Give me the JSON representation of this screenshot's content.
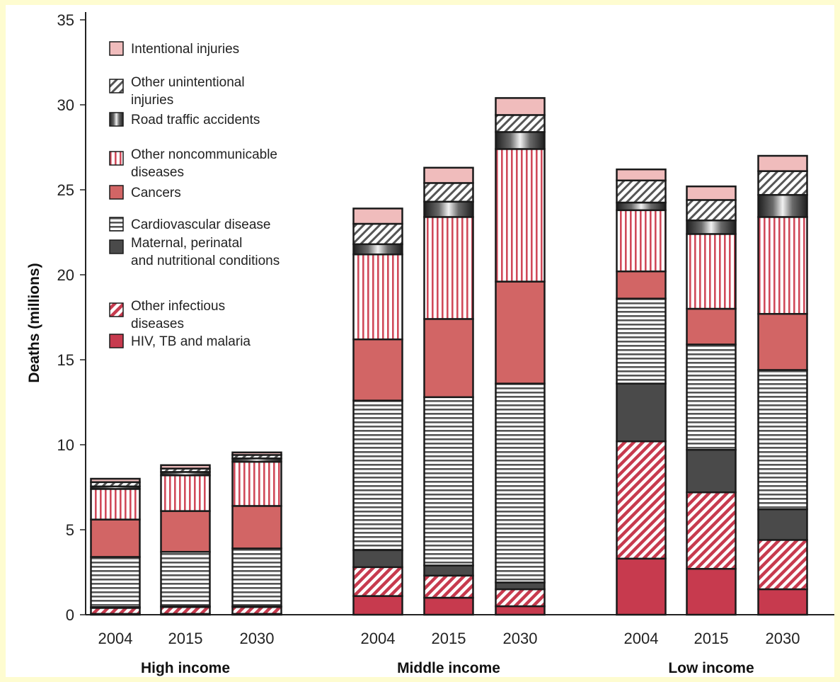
{
  "chart_data": {
    "type": "bar",
    "stacked": true,
    "title": "",
    "xlabel": "",
    "ylabel": "Deaths (millions)",
    "ylim": [
      0,
      35
    ],
    "yticks": [
      0,
      5,
      10,
      15,
      20,
      25,
      30,
      35
    ],
    "grid": false,
    "legend_position": "top-left",
    "groups": [
      "High income",
      "Middle income",
      "Low income"
    ],
    "years": [
      "2004",
      "2015",
      "2030"
    ],
    "categories": [
      "High income 2004",
      "High income 2015",
      "High income 2030",
      "Middle income 2004",
      "Middle income 2015",
      "Middle income 2030",
      "Low income 2004",
      "Low income 2015",
      "Low income 2030"
    ],
    "series": [
      {
        "name": "HIV, TB and malaria",
        "color": "#c73a4e",
        "pattern": "solid",
        "values": [
          0.05,
          0.05,
          0.05,
          1.1,
          1.0,
          0.5,
          3.3,
          2.7,
          1.5
        ]
      },
      {
        "name": "Other infectious diseases",
        "color": "#c73a4e",
        "pattern": "diagonal",
        "values": [
          0.35,
          0.4,
          0.4,
          1.7,
          1.3,
          1.0,
          6.9,
          4.5,
          2.9
        ]
      },
      {
        "name": "Maternal, perinatal and nutritional conditions",
        "color": "#4a4a4a",
        "pattern": "solid",
        "values": [
          0.05,
          0.05,
          0.05,
          1.0,
          0.6,
          0.4,
          3.4,
          2.5,
          1.8
        ]
      },
      {
        "name": "Cardiovascular disease",
        "color": "#555555",
        "pattern": "horizontal",
        "values": [
          2.95,
          3.2,
          3.4,
          8.8,
          9.9,
          11.7,
          5.0,
          6.2,
          8.2
        ]
      },
      {
        "name": "Cancers",
        "color": "#d26565",
        "pattern": "solid",
        "values": [
          2.2,
          2.4,
          2.5,
          3.6,
          4.6,
          6.0,
          1.6,
          2.1,
          3.3
        ]
      },
      {
        "name": "Other noncommunicable diseases",
        "color": "#d04a5a",
        "pattern": "vertical",
        "values": [
          1.8,
          2.1,
          2.6,
          5.0,
          6.0,
          7.8,
          3.6,
          4.4,
          5.7
        ]
      },
      {
        "name": "Road traffic accidents",
        "color": "#2a2a2a",
        "pattern": "gradient",
        "values": [
          0.15,
          0.2,
          0.2,
          0.6,
          0.9,
          1.0,
          0.45,
          0.8,
          1.3
        ]
      },
      {
        "name": "Other unintentional injuries",
        "color": "#555555",
        "pattern": "diagonal",
        "values": [
          0.25,
          0.2,
          0.2,
          1.2,
          1.1,
          1.0,
          1.3,
          1.2,
          1.4
        ]
      },
      {
        "name": "Intentional injuries",
        "color": "#f0bcbc",
        "pattern": "solid",
        "values": [
          0.2,
          0.2,
          0.15,
          0.9,
          0.9,
          1.0,
          0.65,
          0.8,
          0.9
        ]
      }
    ],
    "legend_order": [
      "Intentional injuries",
      "Other unintentional injuries",
      "Road traffic accidents",
      "Other noncommunicable diseases",
      "Cancers",
      "Cardiovascular disease",
      "Maternal, perinatal and nutritional conditions",
      "Other infectious diseases",
      "HIV, TB and malaria"
    ],
    "legend_lines": [
      [
        "Intentional injuries"
      ],
      [
        "Other unintentional",
        "injuries"
      ],
      [
        "Road traffic accidents"
      ],
      [
        "Other noncommunicable",
        "diseases"
      ],
      [
        "Cancers"
      ],
      [
        "Cardiovascular disease"
      ],
      [
        "Maternal, perinatal",
        "and nutritional conditions"
      ],
      [
        "Other infectious",
        "diseases"
      ],
      [
        "HIV, TB and malaria"
      ]
    ]
  }
}
